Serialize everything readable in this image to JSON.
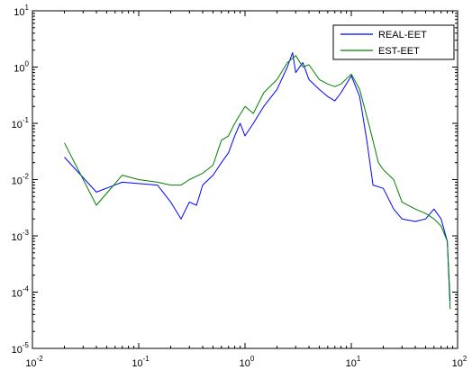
{
  "chart_data": {
    "type": "line",
    "title": "",
    "xlabel": "",
    "ylabel": "",
    "xscale": "log",
    "yscale": "log",
    "xlim": [
      0.01,
      100
    ],
    "ylim": [
      1e-05,
      10
    ],
    "grid": false,
    "legend_position": "top-right",
    "x_ticks": [
      {
        "base": "10",
        "exp": "-2"
      },
      {
        "base": "10",
        "exp": "-1"
      },
      {
        "base": "10",
        "exp": "0"
      },
      {
        "base": "10",
        "exp": "1"
      },
      {
        "base": "10",
        "exp": "2"
      }
    ],
    "y_ticks": [
      {
        "base": "10",
        "exp": "-5"
      },
      {
        "base": "10",
        "exp": "-4"
      },
      {
        "base": "10",
        "exp": "-3"
      },
      {
        "base": "10",
        "exp": "-2"
      },
      {
        "base": "10",
        "exp": "-1"
      },
      {
        "base": "10",
        "exp": "0"
      },
      {
        "base": "10",
        "exp": "1"
      }
    ],
    "series": [
      {
        "name": "REAL-EET",
        "color": "#0000ff",
        "points": [
          [
            0.02,
            0.025
          ],
          [
            0.04,
            0.006
          ],
          [
            0.07,
            0.009
          ],
          [
            0.1,
            0.0085
          ],
          [
            0.15,
            0.008
          ],
          [
            0.2,
            0.004
          ],
          [
            0.25,
            0.002
          ],
          [
            0.3,
            0.004
          ],
          [
            0.35,
            0.0035
          ],
          [
            0.4,
            0.008
          ],
          [
            0.5,
            0.012
          ],
          [
            0.6,
            0.02
          ],
          [
            0.7,
            0.03
          ],
          [
            0.8,
            0.06
          ],
          [
            0.9,
            0.1
          ],
          [
            1.0,
            0.06
          ],
          [
            1.2,
            0.1
          ],
          [
            1.5,
            0.2
          ],
          [
            2.0,
            0.4
          ],
          [
            2.5,
            1.0
          ],
          [
            2.8,
            1.8
          ],
          [
            3.0,
            0.8
          ],
          [
            3.5,
            1.2
          ],
          [
            4.0,
            0.6
          ],
          [
            5.0,
            0.4
          ],
          [
            6.0,
            0.3
          ],
          [
            7.0,
            0.25
          ],
          [
            8.0,
            0.35
          ],
          [
            10.0,
            0.7
          ],
          [
            12.0,
            0.3
          ],
          [
            14.0,
            0.05
          ],
          [
            16.0,
            0.008
          ],
          [
            20.0,
            0.007
          ],
          [
            25.0,
            0.003
          ],
          [
            30.0,
            0.002
          ],
          [
            40.0,
            0.0018
          ],
          [
            50.0,
            0.002
          ],
          [
            60.0,
            0.003
          ],
          [
            70.0,
            0.002
          ],
          [
            80.0,
            0.0008
          ],
          [
            85.0,
            7e-05
          ]
        ]
      },
      {
        "name": "EST-EET",
        "color": "#008000",
        "points": [
          [
            0.02,
            0.045
          ],
          [
            0.04,
            0.0035
          ],
          [
            0.07,
            0.012
          ],
          [
            0.1,
            0.01
          ],
          [
            0.15,
            0.009
          ],
          [
            0.2,
            0.008
          ],
          [
            0.25,
            0.008
          ],
          [
            0.3,
            0.01
          ],
          [
            0.4,
            0.013
          ],
          [
            0.5,
            0.018
          ],
          [
            0.6,
            0.05
          ],
          [
            0.7,
            0.06
          ],
          [
            0.8,
            0.1
          ],
          [
            1.0,
            0.2
          ],
          [
            1.2,
            0.15
          ],
          [
            1.5,
            0.35
          ],
          [
            2.0,
            0.6
          ],
          [
            2.5,
            1.2
          ],
          [
            3.0,
            1.6
          ],
          [
            3.5,
            1.0
          ],
          [
            4.0,
            1.1
          ],
          [
            5.0,
            0.6
          ],
          [
            6.0,
            0.5
          ],
          [
            7.0,
            0.45
          ],
          [
            8.0,
            0.5
          ],
          [
            10.0,
            0.75
          ],
          [
            12.0,
            0.4
          ],
          [
            15.0,
            0.08
          ],
          [
            18.0,
            0.02
          ],
          [
            20.0,
            0.015
          ],
          [
            25.0,
            0.01
          ],
          [
            30.0,
            0.004
          ],
          [
            40.0,
            0.003
          ],
          [
            50.0,
            0.0025
          ],
          [
            60.0,
            0.002
          ],
          [
            70.0,
            0.0015
          ],
          [
            80.0,
            0.0008
          ],
          [
            85.0,
            5e-05
          ]
        ]
      }
    ]
  }
}
